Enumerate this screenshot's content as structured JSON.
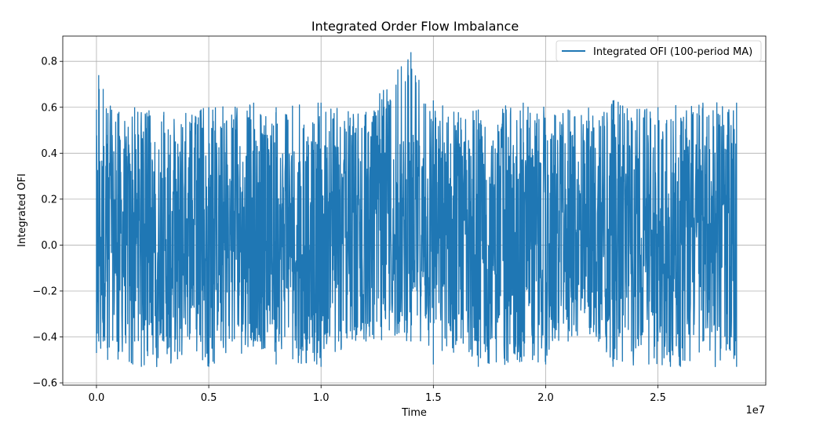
{
  "chart_data": {
    "type": "line",
    "title": "Integrated Order Flow Imbalance",
    "xlabel": "Time",
    "ylabel": "Integrated OFI",
    "x_offset_label": "1e7",
    "xlim": [
      -0.15,
      2.98
    ],
    "ylim": [
      -0.61,
      0.91
    ],
    "x_ticks": [
      0.0,
      0.5,
      1.0,
      1.5,
      2.0,
      2.5
    ],
    "x_tick_labels": [
      "0.0",
      "0.5",
      "1.0",
      "1.5",
      "2.0",
      "2.5"
    ],
    "y_ticks": [
      -0.6,
      -0.4,
      -0.2,
      0.0,
      0.2,
      0.4,
      0.6,
      0.8
    ],
    "y_tick_labels": [
      "−0.6",
      "−0.4",
      "−0.2",
      "0.0",
      "0.2",
      "0.4",
      "0.6",
      "0.8"
    ],
    "grid": true,
    "legend_position": "top-right",
    "series": [
      {
        "name": "Integrated OFI (100-period MA)",
        "color": "#1f77b4",
        "x_range": [
          0.0,
          2.85
        ],
        "values": {
          "upper_envelope": [
            [
              0.0,
              0.59
            ],
            [
              0.01,
              0.74
            ],
            [
              0.03,
              0.68
            ],
            [
              0.1,
              0.58
            ],
            [
              0.17,
              0.6
            ],
            [
              0.3,
              0.58
            ],
            [
              0.5,
              0.6
            ],
            [
              0.7,
              0.62
            ],
            [
              0.73,
              0.57
            ],
            [
              0.8,
              0.6
            ],
            [
              1.0,
              0.62
            ],
            [
              1.2,
              0.58
            ],
            [
              1.4,
              0.84
            ],
            [
              1.5,
              0.63
            ],
            [
              1.7,
              0.59
            ],
            [
              1.9,
              0.62
            ],
            [
              2.1,
              0.59
            ],
            [
              2.3,
              0.63
            ],
            [
              2.5,
              0.6
            ],
            [
              2.7,
              0.62
            ],
            [
              2.85,
              0.62
            ]
          ],
          "lower_envelope": [
            [
              0.0,
              -0.47
            ],
            [
              0.05,
              -0.5
            ],
            [
              0.2,
              -0.53
            ],
            [
              0.5,
              -0.53
            ],
            [
              0.75,
              -0.45
            ],
            [
              0.76,
              -0.22
            ],
            [
              0.8,
              -0.52
            ],
            [
              1.0,
              -0.53
            ],
            [
              1.4,
              -0.3
            ],
            [
              1.41,
              -0.19
            ],
            [
              1.5,
              -0.52
            ],
            [
              1.7,
              -0.53
            ],
            [
              2.0,
              -0.52
            ],
            [
              2.1,
              -0.3
            ],
            [
              2.12,
              -0.25
            ],
            [
              2.3,
              -0.53
            ],
            [
              2.6,
              -0.53
            ],
            [
              2.85,
              -0.53
            ]
          ],
          "dense_band": [
            -0.42,
            0.48
          ]
        }
      }
    ]
  }
}
